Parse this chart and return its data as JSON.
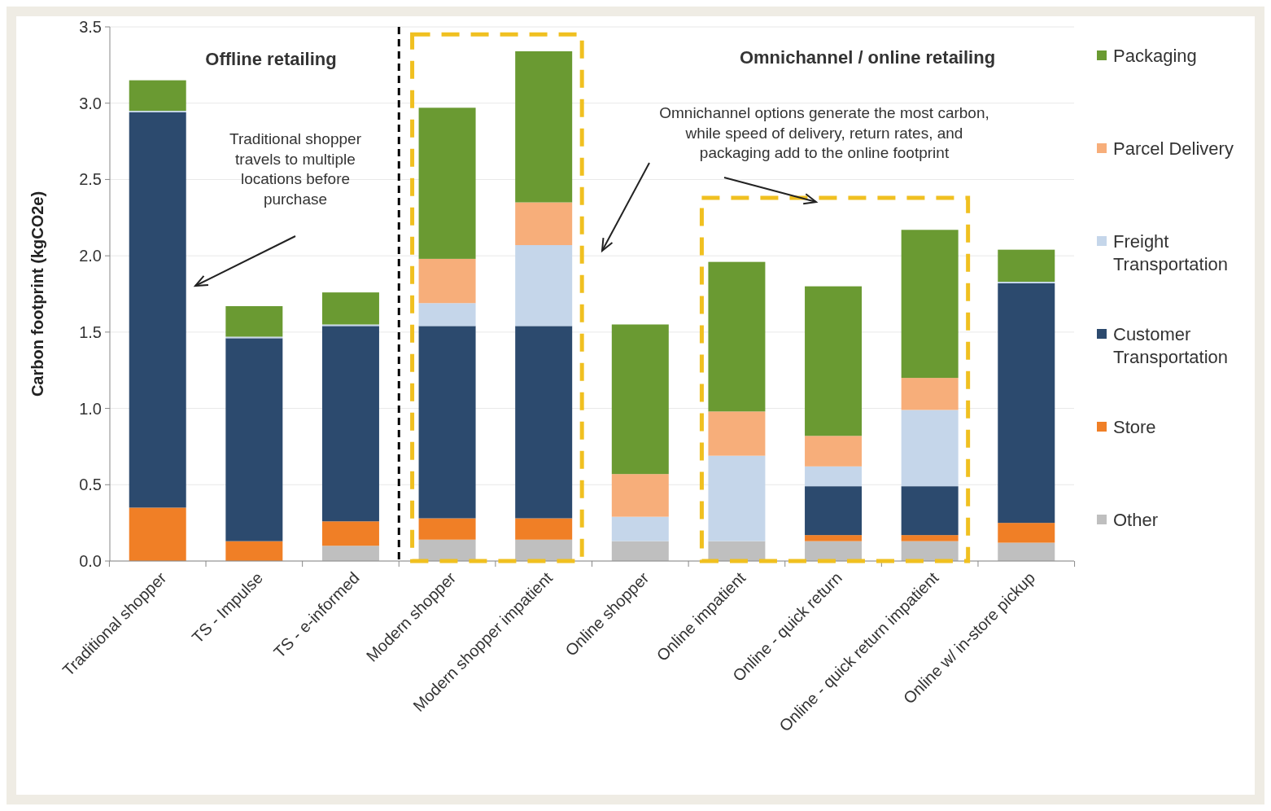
{
  "chart_data": {
    "type": "bar",
    "stacked": true,
    "ylabel": "Carbon footprint (kgCO2e)",
    "categories": [
      "Traditional shopper",
      "TS - Impulse",
      "TS - e-informed",
      "Modern shopper",
      "Modern shopper impatient",
      "Online shopper",
      "Online impatient",
      "Online - quick return",
      "Online - quick return impatient",
      "Online w/ in-store pickup"
    ],
    "series": [
      {
        "name": "Other",
        "color": "#bfbfbf",
        "values": [
          0,
          0,
          0.1,
          0.14,
          0.14,
          0.13,
          0.13,
          0.13,
          0.13,
          0.12
        ]
      },
      {
        "name": "Store",
        "color": "#f07f26",
        "values": [
          0.35,
          0.13,
          0.16,
          0.14,
          0.14,
          0,
          0,
          0.04,
          0.04,
          0.13
        ]
      },
      {
        "name": "Customer Transportation",
        "color": "#2c4a6e",
        "values": [
          2.59,
          1.33,
          1.28,
          1.26,
          1.26,
          0,
          0,
          0.32,
          0.32,
          1.57
        ]
      },
      {
        "name": "Freight Transportation",
        "color": "#c5d6ea",
        "values": [
          0.01,
          0.01,
          0.01,
          0.15,
          0.53,
          0.16,
          0.56,
          0.13,
          0.5,
          0.01
        ]
      },
      {
        "name": "Parcel Delivery",
        "color": "#f7ae7a",
        "values": [
          0,
          0,
          0,
          0.29,
          0.28,
          0.28,
          0.29,
          0.2,
          0.21,
          0
        ]
      },
      {
        "name": "Packaging",
        "color": "#6a9a32",
        "values": [
          0.2,
          0.2,
          0.21,
          0.99,
          0.99,
          0.98,
          0.98,
          0.98,
          0.97,
          0.21
        ]
      }
    ],
    "ylim": [
      0,
      3.5
    ],
    "yticks": [
      {
        "value": 0,
        "label": "0.0"
      },
      0.5,
      {
        "value": 1,
        "label": "1.0"
      },
      1.5,
      {
        "value": 2,
        "label": "2.0"
      },
      2.5,
      {
        "value": 3,
        "label": "3.0"
      },
      3.5
    ],
    "grid": "y",
    "legend": "right",
    "annotations": [
      "Offline retailing",
      "Omnichannel / online retailing",
      "Traditional shopper\ntravels to multiple\nlocations before\npurchase",
      "Omnichannel options generate the most carbon,\nwhile speed of delivery, return rates, and\npackaging add to the online footprint"
    ]
  }
}
